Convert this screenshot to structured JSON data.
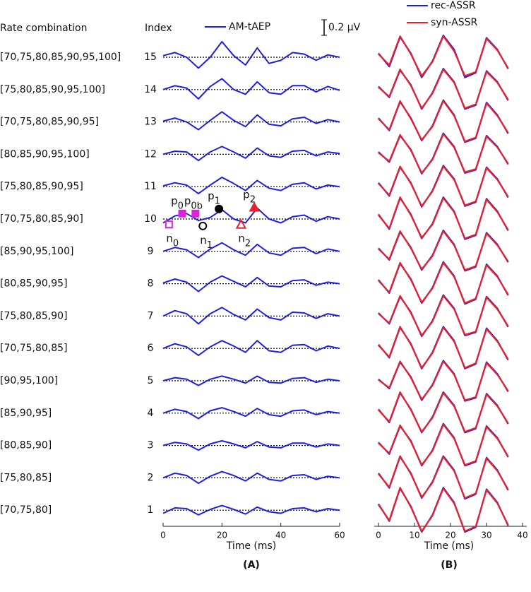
{
  "chart_data": [
    {
      "type": "line",
      "header_rate": "Rate combination",
      "header_index": "Index",
      "row_labels": [
        "[70,75,80,85,90,95,100]",
        "[75,80,85,90,95,100]",
        "[70,75,80,85,90,95]",
        "[80,85,90,95,100]",
        "[75,80,85,90,95]",
        "[70,75,80,85,90]",
        "[85,90,95,100]",
        "[80,85,90,95]",
        "[75,80,85,90]",
        "[70,75,80,85]",
        "[90,95,100]",
        "[85,90,95]",
        "[80,85,90]",
        "[75,80,85]",
        "[70,75,80]"
      ],
      "indices": [
        15,
        14,
        13,
        12,
        11,
        10,
        9,
        8,
        7,
        6,
        5,
        4,
        3,
        2,
        1
      ],
      "xlabel": "Time (ms)",
      "panel_label": "(A)",
      "xlim": [
        0,
        60
      ],
      "xticks": [
        0,
        20,
        40,
        60
      ],
      "scale_bar": {
        "value": 0.2,
        "label": "0.2 μV"
      },
      "x": [
        0,
        4,
        8,
        12,
        16,
        20,
        24,
        28,
        32,
        36,
        40,
        44,
        48,
        52,
        56,
        60
      ],
      "series": [
        {
          "name": "AM-tAEP",
          "color": "#1f1fdc",
          "rows": [
            [
              0.02,
              0.06,
              0.0,
              -0.14,
              0.0,
              0.2,
              0.02,
              -0.1,
              0.12,
              -0.08,
              -0.04,
              0.06,
              0.04,
              -0.04,
              0.03,
              0.0
            ],
            [
              0.0,
              0.05,
              0.02,
              -0.12,
              0.04,
              0.14,
              0.0,
              -0.06,
              0.1,
              -0.04,
              -0.06,
              0.05,
              0.05,
              -0.03,
              0.04,
              -0.01
            ],
            [
              0.01,
              0.05,
              0.0,
              -0.1,
              0.02,
              0.13,
              0.02,
              -0.06,
              0.09,
              -0.03,
              -0.05,
              0.04,
              0.06,
              -0.02,
              0.03,
              0.0
            ],
            [
              0.0,
              0.04,
              0.03,
              -0.08,
              0.03,
              0.1,
              0.03,
              -0.05,
              0.08,
              -0.02,
              -0.04,
              0.04,
              0.05,
              -0.02,
              0.03,
              0.01
            ],
            [
              0.01,
              0.05,
              0.02,
              -0.09,
              0.02,
              0.12,
              0.04,
              -0.05,
              0.08,
              -0.02,
              -0.05,
              0.03,
              0.05,
              -0.03,
              0.02,
              0.0
            ],
            [
              -0.05,
              0.04,
              0.07,
              -0.02,
              0.02,
              0.12,
              0.0,
              -0.05,
              0.14,
              0.0,
              -0.05,
              0.03,
              0.05,
              -0.03,
              0.03,
              0.0
            ],
            [
              0.0,
              0.05,
              0.02,
              -0.08,
              0.03,
              0.11,
              0.02,
              -0.05,
              0.09,
              -0.02,
              -0.05,
              0.04,
              0.05,
              -0.03,
              0.03,
              0.0
            ],
            [
              0.01,
              0.06,
              0.02,
              -0.1,
              0.02,
              0.1,
              0.03,
              -0.04,
              0.08,
              -0.03,
              -0.04,
              0.04,
              0.05,
              -0.02,
              0.02,
              0.0
            ],
            [
              0.0,
              0.07,
              0.03,
              -0.1,
              0.03,
              0.11,
              0.02,
              -0.05,
              0.09,
              -0.02,
              -0.05,
              0.05,
              0.04,
              -0.03,
              0.03,
              0.0
            ],
            [
              0.0,
              0.06,
              0.02,
              -0.09,
              0.02,
              0.1,
              0.03,
              -0.05,
              0.1,
              -0.03,
              -0.05,
              0.04,
              0.05,
              -0.03,
              0.03,
              0.0
            ],
            [
              0.0,
              0.04,
              0.02,
              -0.06,
              0.02,
              0.06,
              0.02,
              -0.03,
              0.06,
              -0.02,
              -0.03,
              0.03,
              0.04,
              -0.02,
              0.02,
              0.0
            ],
            [
              0.0,
              0.05,
              0.02,
              -0.07,
              0.03,
              0.07,
              0.02,
              -0.04,
              0.06,
              -0.02,
              -0.04,
              0.03,
              0.04,
              -0.02,
              0.02,
              0.0
            ],
            [
              0.0,
              0.04,
              0.02,
              -0.06,
              0.02,
              0.06,
              0.02,
              -0.03,
              0.05,
              -0.02,
              -0.03,
              0.03,
              0.03,
              -0.02,
              0.02,
              0.0
            ],
            [
              0.0,
              0.06,
              0.03,
              -0.07,
              0.02,
              0.08,
              0.03,
              -0.04,
              0.06,
              -0.02,
              -0.04,
              0.03,
              0.04,
              -0.02,
              0.02,
              0.0
            ],
            [
              -0.04,
              0.03,
              0.02,
              -0.06,
              0.01,
              0.06,
              0.01,
              -0.05,
              0.04,
              -0.02,
              -0.04,
              0.02,
              0.03,
              -0.02,
              0.02,
              0.0
            ]
          ]
        }
      ],
      "annotation_row": 5,
      "annotations": [
        {
          "base": "n",
          "sub": "0",
          "x": 2,
          "y": -0.07,
          "shape": "square",
          "filled": false,
          "color": "#e020e0"
        },
        {
          "base": "p",
          "sub": "0",
          "x": 6.5,
          "y": 0.07,
          "shape": "square",
          "filled": true,
          "color": "#e020e0"
        },
        {
          "base": "p",
          "sub": "0b",
          "x": 11,
          "y": 0.07,
          "shape": "square",
          "filled": true,
          "color": "#e020e0"
        },
        {
          "base": "n",
          "sub": "1",
          "x": 13.5,
          "y": -0.09,
          "shape": "circle",
          "filled": false,
          "color": "#000000"
        },
        {
          "base": "p",
          "sub": "1",
          "x": 19,
          "y": 0.13,
          "shape": "circle",
          "filled": true,
          "color": "#000000"
        },
        {
          "base": "n",
          "sub": "2",
          "x": 26.5,
          "y": -0.07,
          "shape": "triangle",
          "filled": false,
          "color": "#e8202a"
        },
        {
          "base": "p",
          "sub": "2",
          "x": 31,
          "y": 0.15,
          "shape": "triangle",
          "filled": true,
          "color": "#e8202a"
        }
      ]
    },
    {
      "type": "line",
      "xlabel": "Time (ms)",
      "panel_label": "(B)",
      "xlim": [
        0,
        40
      ],
      "xticks": [
        0,
        10,
        20,
        30,
        40
      ],
      "x": [
        0,
        3,
        6,
        9,
        12,
        15,
        18,
        21,
        24,
        27,
        30,
        33,
        36
      ],
      "series": [
        {
          "name": "rec-ASSR",
          "color": "#1f1fdc",
          "rows": [
            [
              0.05,
              -0.12,
              0.26,
              0.05,
              -0.26,
              -0.05,
              0.28,
              0.1,
              -0.26,
              -0.2,
              0.25,
              0.1,
              -0.15
            ],
            [
              0.04,
              -0.1,
              0.25,
              0.06,
              -0.25,
              -0.04,
              0.27,
              0.1,
              -0.25,
              -0.2,
              0.24,
              0.1,
              -0.14
            ],
            [
              0.05,
              -0.11,
              0.26,
              0.05,
              -0.24,
              -0.05,
              0.28,
              0.09,
              -0.26,
              -0.21,
              0.25,
              0.09,
              -0.15
            ],
            [
              0.03,
              -0.1,
              0.24,
              0.06,
              -0.25,
              -0.06,
              0.27,
              0.1,
              -0.24,
              -0.2,
              0.24,
              0.1,
              -0.13
            ],
            [
              0.05,
              -0.12,
              0.25,
              0.05,
              -0.26,
              -0.05,
              0.27,
              0.1,
              -0.25,
              -0.2,
              0.25,
              0.1,
              -0.14
            ],
            [
              0.06,
              -0.13,
              0.27,
              0.06,
              -0.25,
              -0.06,
              0.28,
              0.1,
              -0.26,
              -0.21,
              0.26,
              0.1,
              -0.15
            ],
            [
              0.04,
              -0.11,
              0.25,
              0.05,
              -0.24,
              -0.05,
              0.27,
              0.09,
              -0.25,
              -0.2,
              0.24,
              0.09,
              -0.14
            ],
            [
              0.05,
              -0.12,
              0.26,
              0.06,
              -0.25,
              -0.05,
              0.28,
              0.1,
              -0.26,
              -0.2,
              0.25,
              0.1,
              -0.15
            ],
            [
              0.04,
              -0.1,
              0.25,
              0.05,
              -0.26,
              -0.06,
              0.27,
              0.1,
              -0.25,
              -0.21,
              0.25,
              0.1,
              -0.14
            ],
            [
              0.05,
              -0.12,
              0.27,
              0.06,
              -0.26,
              -0.05,
              0.28,
              0.1,
              -0.26,
              -0.2,
              0.26,
              0.1,
              -0.15
            ],
            [
              0.02,
              -0.1,
              0.24,
              0.05,
              -0.25,
              -0.05,
              0.26,
              0.09,
              -0.26,
              -0.22,
              0.24,
              0.09,
              -0.14
            ],
            [
              0.05,
              -0.12,
              0.26,
              0.05,
              -0.25,
              -0.05,
              0.27,
              0.1,
              -0.25,
              -0.2,
              0.25,
              0.1,
              -0.14
            ],
            [
              0.04,
              -0.11,
              0.25,
              0.06,
              -0.26,
              -0.06,
              0.28,
              0.1,
              -0.26,
              -0.21,
              0.25,
              0.1,
              -0.15
            ],
            [
              0.06,
              -0.13,
              0.27,
              0.06,
              -0.26,
              -0.05,
              0.28,
              0.1,
              -0.27,
              -0.21,
              0.26,
              0.1,
              -0.16
            ],
            [
              0.08,
              -0.14,
              0.28,
              0.05,
              -0.28,
              -0.06,
              0.29,
              0.1,
              -0.28,
              -0.22,
              0.27,
              0.1,
              -0.2
            ]
          ]
        },
        {
          "name": "syn-ASSR",
          "color": "#e8202a",
          "rows": [
            [
              0.04,
              -0.1,
              0.27,
              0.04,
              -0.24,
              -0.06,
              0.27,
              0.08,
              -0.24,
              -0.19,
              0.24,
              0.09,
              -0.14
            ],
            [
              0.03,
              -0.09,
              0.26,
              0.05,
              -0.24,
              -0.05,
              0.26,
              0.09,
              -0.24,
              -0.19,
              0.23,
              0.09,
              -0.13
            ],
            [
              0.04,
              -0.1,
              0.27,
              0.04,
              -0.23,
              -0.06,
              0.27,
              0.08,
              -0.25,
              -0.2,
              0.24,
              0.08,
              -0.14
            ],
            [
              0.02,
              -0.09,
              0.25,
              0.05,
              -0.24,
              -0.07,
              0.26,
              0.09,
              -0.23,
              -0.19,
              0.23,
              0.09,
              -0.12
            ],
            [
              0.04,
              -0.11,
              0.26,
              0.04,
              -0.25,
              -0.06,
              0.26,
              0.09,
              -0.24,
              -0.19,
              0.24,
              0.09,
              -0.13
            ],
            [
              0.05,
              -0.12,
              0.28,
              0.05,
              -0.24,
              -0.07,
              0.27,
              0.09,
              -0.25,
              -0.2,
              0.25,
              0.09,
              -0.14
            ],
            [
              0.03,
              -0.1,
              0.26,
              0.04,
              -0.23,
              -0.06,
              0.26,
              0.08,
              -0.24,
              -0.19,
              0.23,
              0.08,
              -0.13
            ],
            [
              0.04,
              -0.11,
              0.27,
              0.05,
              -0.24,
              -0.06,
              0.27,
              0.09,
              -0.25,
              -0.19,
              0.24,
              0.09,
              -0.14
            ],
            [
              0.03,
              -0.09,
              0.26,
              0.04,
              -0.25,
              -0.07,
              0.26,
              0.09,
              -0.24,
              -0.2,
              0.24,
              0.09,
              -0.13
            ],
            [
              0.04,
              -0.11,
              0.28,
              0.05,
              -0.25,
              -0.06,
              0.27,
              0.09,
              -0.25,
              -0.19,
              0.25,
              0.09,
              -0.14
            ],
            [
              0.01,
              -0.09,
              0.25,
              0.04,
              -0.24,
              -0.06,
              0.25,
              0.08,
              -0.25,
              -0.21,
              0.23,
              0.08,
              -0.13
            ],
            [
              0.04,
              -0.11,
              0.27,
              0.04,
              -0.24,
              -0.06,
              0.26,
              0.09,
              -0.24,
              -0.19,
              0.24,
              0.09,
              -0.13
            ],
            [
              0.03,
              -0.1,
              0.26,
              0.05,
              -0.25,
              -0.07,
              0.27,
              0.09,
              -0.25,
              -0.2,
              0.24,
              0.09,
              -0.14
            ],
            [
              0.05,
              -0.12,
              0.28,
              0.05,
              -0.25,
              -0.06,
              0.27,
              0.09,
              -0.26,
              -0.2,
              0.25,
              0.09,
              -0.15
            ],
            [
              0.07,
              -0.13,
              0.29,
              0.04,
              -0.27,
              -0.07,
              0.28,
              0.09,
              -0.27,
              -0.21,
              0.26,
              0.09,
              -0.19
            ]
          ]
        }
      ]
    }
  ]
}
